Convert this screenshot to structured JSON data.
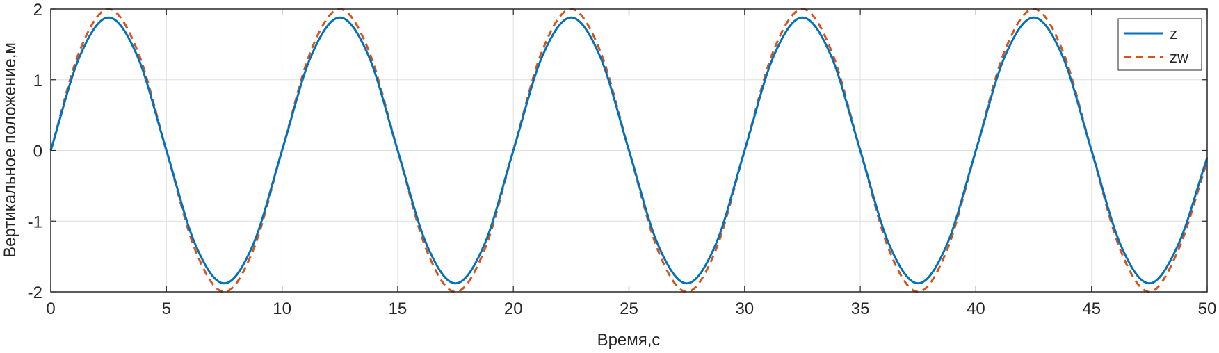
{
  "chart_data": {
    "type": "line",
    "title": "",
    "xlabel": "Время,с",
    "ylabel": "Вертикальное положение,м",
    "xlim": [
      0,
      50
    ],
    "ylim": [
      -2,
      2
    ],
    "xticks": [
      0,
      5,
      10,
      15,
      20,
      25,
      30,
      35,
      40,
      45,
      50
    ],
    "yticks": [
      -2,
      -1,
      0,
      1,
      2
    ],
    "xtick_labels": [
      "0",
      "5",
      "10",
      "15",
      "20",
      "25",
      "30",
      "35",
      "40",
      "45",
      "50"
    ],
    "ytick_labels": [
      "-2",
      "-1",
      "0",
      "1",
      "2"
    ],
    "grid": true,
    "legend_position": "top-right",
    "x": [
      0,
      1.25,
      2.5,
      3.75,
      5,
      6.25,
      7.5,
      8.75,
      10,
      11.25,
      12.5,
      13.75,
      15,
      16.25,
      17.5,
      18.75,
      20,
      21.25,
      22.5,
      23.75,
      25,
      26.25,
      27.5,
      28.75,
      30,
      31.25,
      32.5,
      33.75,
      35,
      36.25,
      37.5,
      38.75,
      40,
      41.25,
      42.5,
      43.75,
      45,
      46.25,
      47.5,
      48.75,
      50
    ],
    "series": [
      {
        "name": "z",
        "color": "#0072BD",
        "style": "solid",
        "values": [
          0,
          1.33,
          1.88,
          1.33,
          0,
          -1.33,
          -1.88,
          -1.33,
          0,
          1.33,
          1.88,
          1.33,
          0,
          -1.33,
          -1.88,
          -1.33,
          0,
          1.33,
          1.88,
          1.33,
          0,
          -1.33,
          -1.88,
          -1.33,
          0,
          1.33,
          1.88,
          1.33,
          0,
          -1.33,
          -1.88,
          -1.33,
          0,
          1.33,
          1.88,
          1.33,
          0,
          -1.33,
          -1.88,
          -1.33,
          -0.1
        ]
      },
      {
        "name": "zw",
        "color": "#D95319",
        "style": "dashed",
        "values": [
          0,
          1.41,
          2.0,
          1.41,
          0,
          -1.41,
          -2.0,
          -1.41,
          0,
          1.41,
          2.0,
          1.41,
          0,
          -1.41,
          -2.0,
          -1.41,
          0,
          1.41,
          2.0,
          1.41,
          0,
          -1.41,
          -2.0,
          -1.41,
          0,
          1.41,
          2.0,
          1.41,
          0,
          -1.41,
          -2.0,
          -1.41,
          0,
          1.41,
          2.0,
          1.41,
          0,
          -1.41,
          -2.0,
          -1.41,
          -0.15
        ]
      }
    ]
  }
}
